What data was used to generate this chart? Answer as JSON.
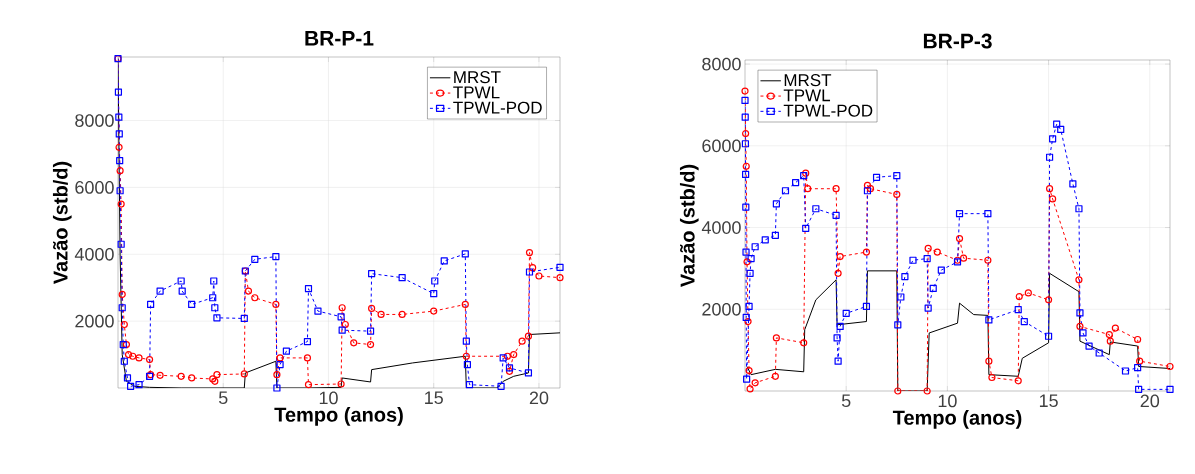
{
  "chart_data": [
    {
      "type": "line",
      "title": "BR-P-1",
      "xlabel": "Tempo (anos)",
      "ylabel": "Vazão (stb/d)",
      "xlim": [
        0,
        21
      ],
      "ylim": [
        0,
        9900
      ],
      "xticks": [
        5,
        10,
        15,
        20
      ],
      "yticks": [
        2000,
        4000,
        6000,
        8000
      ],
      "grid": true,
      "legend": "top right",
      "series": [
        {
          "name": "MRST",
          "color": "#000000",
          "marker": "none",
          "line_style": "solid",
          "x": [
            0,
            0.1,
            0.2,
            0.4,
            0.8,
            1.5,
            3,
            6,
            6.05,
            7.5,
            7.55,
            9,
            10.6,
            10.65,
            12,
            12.05,
            14,
            16.5,
            16.55,
            18,
            18.3,
            18.8,
            19.5,
            19.55,
            21
          ],
          "values": [
            9850,
            4000,
            1000,
            200,
            50,
            20,
            0,
            0,
            450,
            800,
            0,
            0,
            20,
            300,
            180,
            550,
            750,
            950,
            0,
            0,
            200,
            350,
            450,
            1600,
            1650
          ]
        },
        {
          "name": "TPWL",
          "color": "#ff0000",
          "marker": "circle",
          "line_style": "dashed",
          "x": [
            0,
            0.05,
            0.1,
            0.15,
            0.2,
            0.3,
            0.4,
            0.5,
            0.7,
            1.0,
            1.5,
            1.55,
            2,
            3,
            3.5,
            4.5,
            4.6,
            4.7,
            6,
            6.05,
            6.2,
            6.5,
            7.5,
            7.55,
            7.7,
            9,
            9.05,
            10.6,
            10.65,
            10.8,
            11.2,
            12,
            12.05,
            12.5,
            13.5,
            15,
            16.5,
            16.55,
            18.5,
            18.6,
            18.8,
            19.2,
            19.5,
            19.55,
            19.7,
            20,
            21
          ],
          "values": [
            9850,
            7200,
            6500,
            5500,
            2800,
            1900,
            1300,
            1000,
            950,
            900,
            850,
            400,
            380,
            350,
            300,
            270,
            200,
            400,
            420,
            3500,
            2900,
            2700,
            2500,
            400,
            900,
            900,
            100,
            120,
            2400,
            1900,
            1350,
            1300,
            2380,
            2200,
            2200,
            2300,
            2500,
            950,
            950,
            500,
            1000,
            1400,
            1550,
            4050,
            3600,
            3350,
            3300
          ]
        },
        {
          "name": "TPWL-POD",
          "color": "#0000ff",
          "marker": "square",
          "line_style": "dashed",
          "x": [
            0,
            0.02,
            0.04,
            0.06,
            0.08,
            0.1,
            0.15,
            0.2,
            0.25,
            0.3,
            0.45,
            0.6,
            1.0,
            1.5,
            1.55,
            2,
            3,
            3.05,
            3.5,
            4.5,
            4.55,
            4.6,
            4.7,
            6,
            6.05,
            6.5,
            7.5,
            7.55,
            7.7,
            8,
            9,
            9.05,
            9.5,
            10.6,
            10.65,
            12,
            12.05,
            13.5,
            15,
            15.05,
            15.5,
            16.5,
            16.55,
            16.6,
            16.7,
            18.2,
            18.3,
            18.6,
            19.5,
            19.55,
            21
          ],
          "values": [
            9850,
            8850,
            8100,
            7600,
            6800,
            5900,
            4300,
            2400,
            1300,
            800,
            300,
            50,
            100,
            350,
            2500,
            2900,
            3200,
            2900,
            2500,
            2700,
            3200,
            2400,
            2100,
            2080,
            3500,
            3850,
            3930,
            0,
            700,
            1100,
            1390,
            2970,
            2300,
            2130,
            1730,
            1700,
            3420,
            3300,
            2820,
            3200,
            3800,
            4010,
            1400,
            700,
            100,
            50,
            900,
            600,
            450,
            3470,
            3610
          ]
        }
      ]
    },
    {
      "type": "line",
      "title": "BR-P-3",
      "xlabel": "Tempo (anos)",
      "ylabel": "Vazão (stb/d)",
      "xlim": [
        0,
        21
      ],
      "ylim": [
        0,
        8100
      ],
      "xticks": [
        5,
        10,
        15,
        20
      ],
      "yticks": [
        2000,
        4000,
        6000,
        8000
      ],
      "grid": true,
      "legend": "top left",
      "series": [
        {
          "name": "MRST",
          "color": "#000000",
          "marker": "none",
          "line_style": "solid",
          "x": [
            0.1,
            0.3,
            1.5,
            2.9,
            2.95,
            3.5,
            4.5,
            4.55,
            6,
            6.05,
            7.5,
            7.55,
            9,
            9.1,
            10.5,
            10.6,
            11.3,
            12,
            12.05,
            13.5,
            13.7,
            15,
            15.05,
            16.5,
            16.55,
            18,
            18.05,
            19.4,
            19.45,
            21
          ],
          "values": [
            600,
            400,
            530,
            470,
            1500,
            2230,
            2720,
            1620,
            1700,
            2940,
            2940,
            0,
            0,
            1420,
            1660,
            2150,
            1870,
            1850,
            400,
            360,
            800,
            1180,
            2880,
            2430,
            1220,
            890,
            1200,
            1100,
            600,
            550
          ]
        },
        {
          "name": "TPWL",
          "color": "#ff0000",
          "marker": "circle",
          "line_style": "dashed",
          "x": [
            0,
            0.03,
            0.06,
            0.1,
            0.15,
            0.2,
            0.25,
            0.5,
            1.5,
            1.55,
            2.9,
            3,
            3.1,
            4.5,
            4.6,
            4.7,
            6,
            6.05,
            6.2,
            7.5,
            7.55,
            9,
            9.05,
            9.5,
            10.5,
            10.6,
            10.8,
            12,
            12.05,
            12.2,
            13.5,
            13.55,
            14,
            15,
            15.05,
            15.2,
            16.5,
            16.55,
            18,
            18.05,
            18.3,
            19.4,
            19.5,
            21
          ],
          "values": [
            7340,
            6300,
            5500,
            3160,
            1700,
            500,
            50,
            200,
            360,
            1300,
            1180,
            5330,
            4950,
            4950,
            2880,
            3290,
            3400,
            5030,
            4950,
            4810,
            0,
            0,
            3490,
            3400,
            3200,
            3730,
            3250,
            3200,
            730,
            330,
            250,
            2310,
            2400,
            2230,
            4950,
            4700,
            2720,
            1580,
            1380,
            1220,
            1540,
            1260,
            730,
            600
          ]
        },
        {
          "name": "TPWL-POD",
          "color": "#0000ff",
          "marker": "square",
          "line_style": "dashed",
          "x": [
            0,
            0.01,
            0.02,
            0.03,
            0.04,
            0.05,
            0.06,
            0.08,
            0.2,
            0.25,
            0.3,
            0.5,
            1.0,
            1.5,
            1.55,
            2,
            2.5,
            2.9,
            3,
            3.5,
            4.5,
            4.55,
            4.6,
            4.7,
            5,
            6,
            6.05,
            6.5,
            7.5,
            7.55,
            7.7,
            7.9,
            8.3,
            9,
            9.05,
            9.3,
            9.7,
            10.5,
            10.6,
            12,
            12.05,
            13.5,
            13.8,
            15,
            15.05,
            15.2,
            15.4,
            15.6,
            16.2,
            16.5,
            16.55,
            16.7,
            17,
            17.5,
            18.8,
            19.4,
            19.45,
            21
          ],
          "values": [
            7110,
            6700,
            6050,
            5300,
            4500,
            3400,
            1800,
            290,
            2070,
            2880,
            3240,
            3530,
            3700,
            3810,
            4580,
            4900,
            5100,
            5270,
            3980,
            4460,
            4300,
            1300,
            730,
            1580,
            1900,
            2070,
            4900,
            5230,
            5270,
            1620,
            2300,
            2800,
            3200,
            3240,
            2030,
            2510,
            2960,
            3160,
            4340,
            4340,
            1740,
            1990,
            1700,
            1340,
            5720,
            6170,
            6530,
            6400,
            5070,
            4460,
            1910,
            1420,
            1100,
            930,
            490,
            570,
            40,
            40
          ]
        }
      ]
    }
  ]
}
